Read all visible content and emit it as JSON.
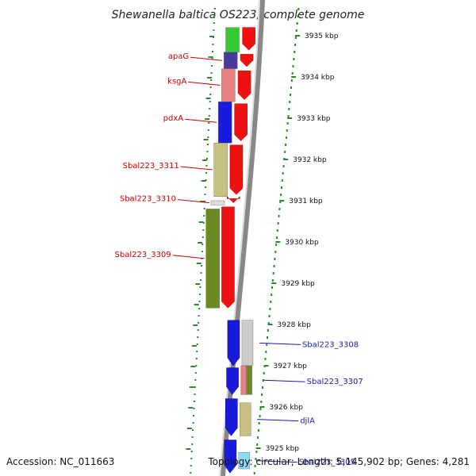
{
  "title": "Shewanella baltica OS223, complete genome",
  "footer": {
    "accession": "Accession: NC_011663",
    "topology": "Topology: circular; Length: 5,145,902 bp; Genes: 4,281"
  },
  "ticks": [
    {
      "label": "3935 kbp",
      "pos": 3935
    },
    {
      "label": "3934 kbp",
      "pos": 3934
    },
    {
      "label": "3933 kbp",
      "pos": 3933
    },
    {
      "label": "3932 kbp",
      "pos": 3932
    },
    {
      "label": "3931 kbp",
      "pos": 3931
    },
    {
      "label": "3930 kbp",
      "pos": 3930
    },
    {
      "label": "3929 kbp",
      "pos": 3929
    },
    {
      "label": "3928 kbp",
      "pos": 3928
    },
    {
      "label": "3927 kbp",
      "pos": 3927
    },
    {
      "label": "3926 kbp",
      "pos": 3926
    },
    {
      "label": "3925 kbp",
      "pos": 3925
    }
  ],
  "genes_left": [
    {
      "label": "",
      "start": 3935.2,
      "end": 3934.6,
      "color": "#33cc33"
    },
    {
      "label": "apaG",
      "start": 3934.6,
      "end": 3934.2,
      "color": "#4a3a99"
    },
    {
      "label": "ksgA",
      "start": 3934.2,
      "end": 3933.4,
      "color": "#e88080"
    },
    {
      "label": "pdxA",
      "start": 3933.4,
      "end": 3932.4,
      "color": "#1a1add"
    },
    {
      "label": "Sbal223_3311",
      "start": 3932.4,
      "end": 3931.1,
      "color": "#c8c080"
    },
    {
      "label": "Sbal223_3310",
      "start": 3931.0,
      "end": 3930.9,
      "color": "#dddddd"
    },
    {
      "label": "Sbal223_3309",
      "start": 3930.8,
      "end": 3928.4,
      "color": "#6b8a22"
    }
  ],
  "genes_right": [
    {
      "label": "Sbal223_3308",
      "start": 3928.1,
      "end": 3927.0,
      "color": "#cccccc"
    },
    {
      "label": "",
      "start": 3927.0,
      "end": 3926.3,
      "color": "#e88080"
    },
    {
      "label": "Sbal223_3307",
      "start": 3927.0,
      "end": 3926.3,
      "color": "#6b8a22"
    },
    {
      "label": "djlA",
      "start": 3926.1,
      "end": 3925.3,
      "color": "#c8c080"
    },
    {
      "label": "Sbal223_3305",
      "start": 3924.9,
      "end": 3924.5,
      "color": "#88ddff"
    }
  ]
}
